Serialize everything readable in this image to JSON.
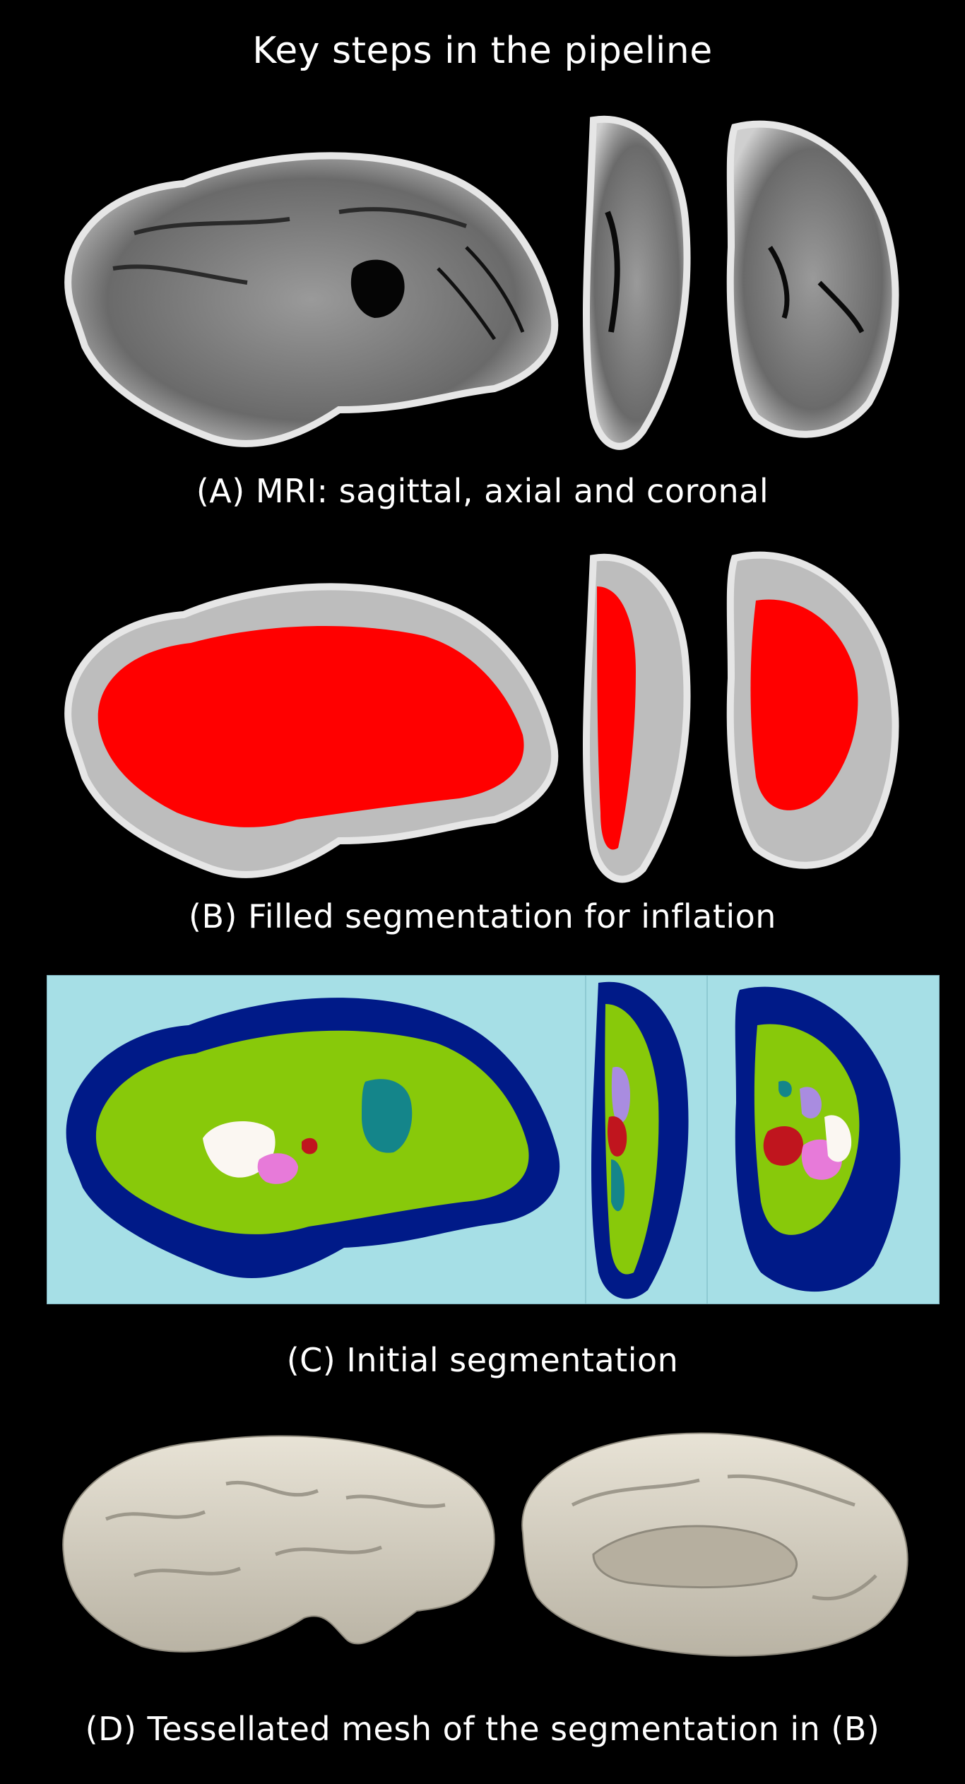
{
  "title": "Key steps in the pipeline",
  "panels": [
    {
      "id": "A",
      "caption": "(A) MRI: sagittal, axial and coronal"
    },
    {
      "id": "B",
      "caption": "(B) Filled segmentation for inflation"
    },
    {
      "id": "C",
      "caption": "(C) Initial segmentation"
    },
    {
      "id": "D",
      "caption": "(D) Tessellated mesh of the segmentation in (B)"
    }
  ],
  "colors": {
    "background": "#000000",
    "white_matter_fill": "#ff0000",
    "seg_background": "#a6dfe6",
    "seg_cortex": "#001a88",
    "seg_white_matter": "#88c90a",
    "seg_thalamus": "#fbf7f2",
    "seg_putamen_pallidum": "#e77ad9",
    "seg_caudate_hippocampus": "#14858a",
    "seg_red_structure": "#c0151e",
    "seg_purple_structure": "#a98ce0",
    "mesh_surface": "#d8d3c7"
  }
}
